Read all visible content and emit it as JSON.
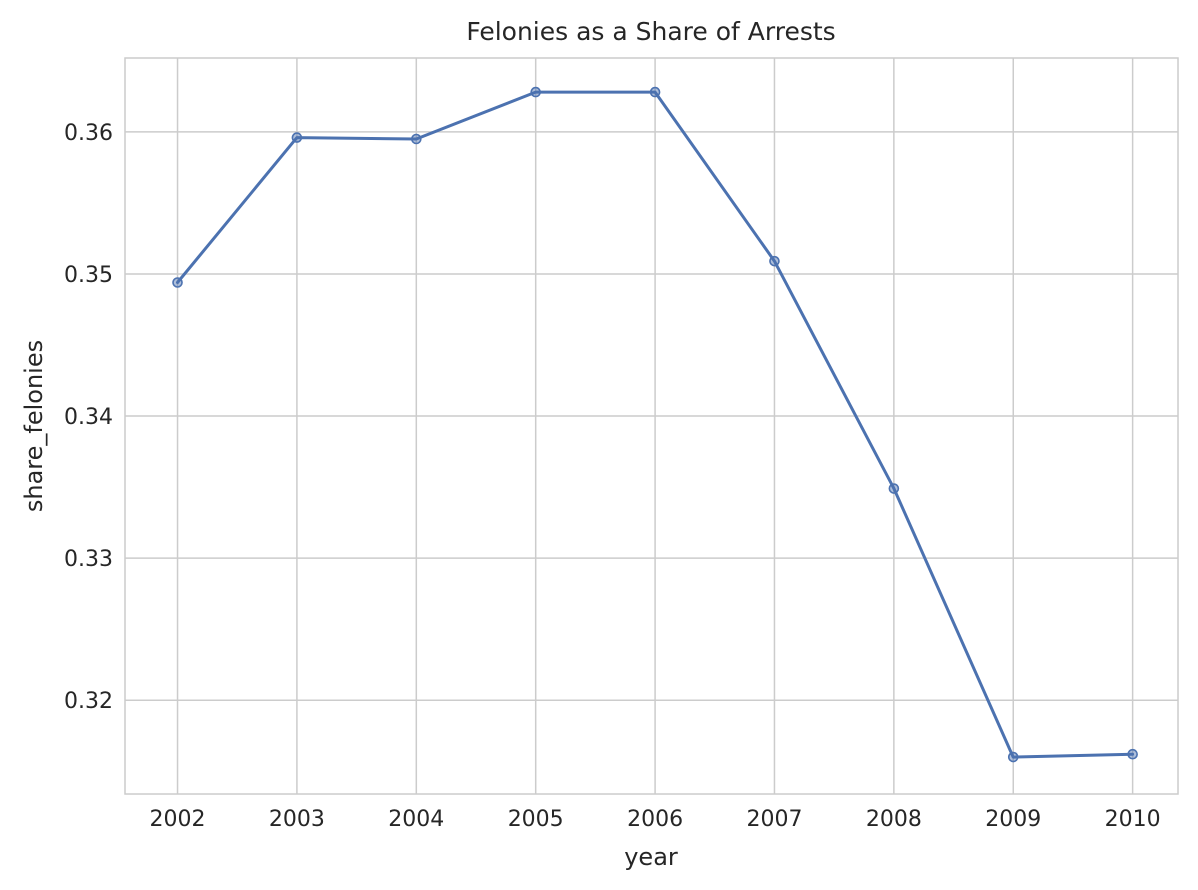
{
  "chart_data": {
    "type": "line",
    "title": "Felonies as a Share of Arrests",
    "xlabel": "year",
    "ylabel": "share_felonies",
    "x": [
      2002,
      2003,
      2004,
      2005,
      2006,
      2007,
      2008,
      2009,
      2010
    ],
    "x_tick_labels": [
      "2002",
      "2003",
      "2004",
      "2005",
      "2006",
      "2007",
      "2008",
      "2009",
      "2010"
    ],
    "xlim": [
      2001.56,
      2010.38
    ],
    "y_ticks": [
      0.32,
      0.33,
      0.34,
      0.35,
      0.36
    ],
    "y_tick_labels": [
      "0.32",
      "0.33",
      "0.34",
      "0.35",
      "0.36"
    ],
    "ylim": [
      0.3134,
      0.3652
    ],
    "grid": true,
    "series": [
      {
        "values": [
          0.3494,
          0.3596,
          0.3595,
          0.3628,
          0.3628,
          0.3509,
          0.3349,
          0.316,
          0.3162
        ],
        "color": "#4c72b0",
        "marker": "circle"
      }
    ]
  }
}
